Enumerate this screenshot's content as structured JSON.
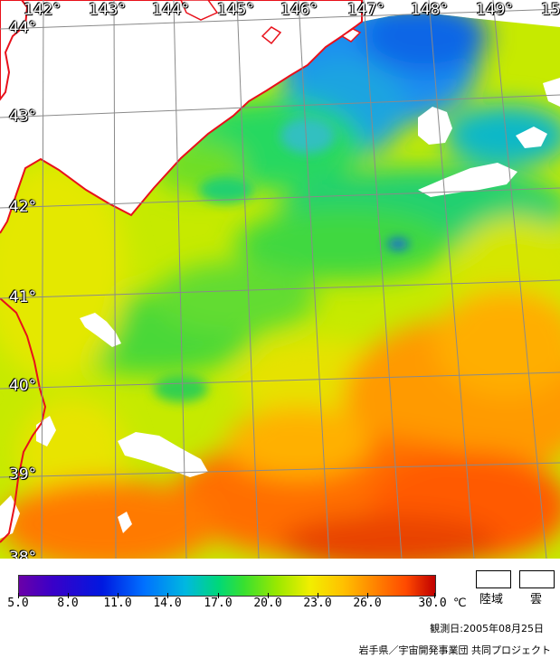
{
  "map": {
    "longitude_labels": [
      "142°",
      "143°",
      "144°",
      "145°",
      "146°",
      "147°",
      "148°",
      "149°",
      "15"
    ],
    "latitude_labels": [
      "44°",
      "43°",
      "42°",
      "41°",
      "40°",
      "39°",
      "38°"
    ],
    "colors": {
      "land": "#ffffff",
      "coast": "#e8101a",
      "grid": "#8a8a8a"
    }
  },
  "colorbar": {
    "ticks": [
      "5.0",
      "8.0",
      "11.0",
      "14.0",
      "17.0",
      "20.0",
      "23.0",
      "26.0",
      "30.0"
    ],
    "unit": "℃"
  },
  "legend": {
    "land_label": "陸域",
    "cloud_label": "雲"
  },
  "footer": {
    "observation_date": "観測日:2005年08月25日",
    "credit": "岩手県／宇宙開発事業団 共同プロジェクト"
  }
}
